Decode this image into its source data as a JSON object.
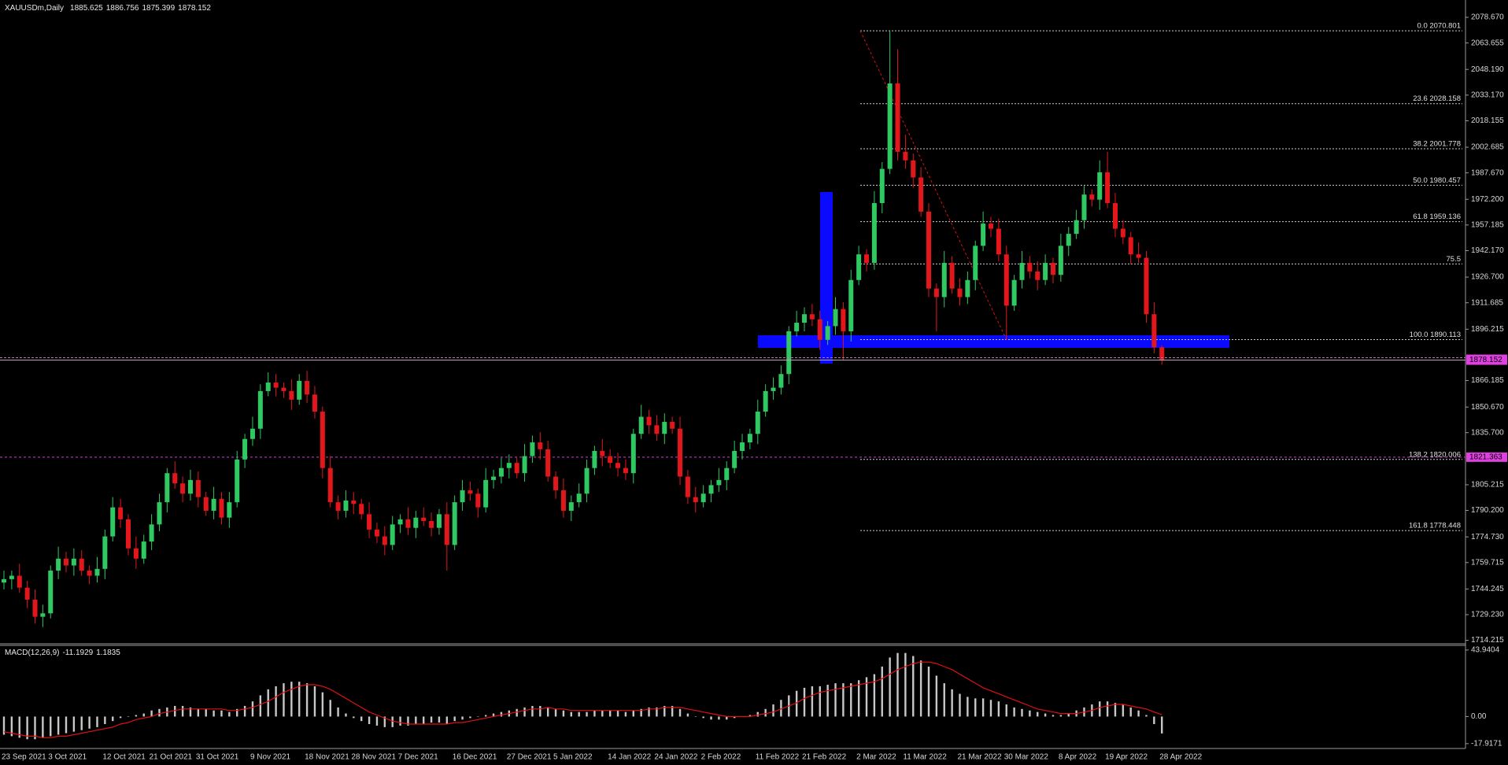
{
  "chart_data": [
    {
      "type": "candlestick",
      "title": "XAUUSDm,Daily",
      "categories": [
        "23 Sep 2021",
        null,
        null,
        null,
        null,
        null,
        "3 Oct 2021",
        null,
        null,
        null,
        null,
        null,
        null,
        "12 Oct 2021",
        null,
        null,
        null,
        null,
        null,
        "21 Oct 2021",
        null,
        null,
        null,
        null,
        null,
        "31 Oct 2021",
        null,
        null,
        null,
        null,
        null,
        null,
        "9 Nov 2021",
        null,
        null,
        null,
        null,
        null,
        null,
        "18 Nov 2021",
        null,
        null,
        null,
        null,
        null,
        "28 Nov 2021",
        null,
        null,
        null,
        null,
        null,
        "7 Dec 2021",
        null,
        null,
        null,
        null,
        null,
        null,
        "16 Dec 2021",
        null,
        null,
        null,
        null,
        null,
        null,
        "27 Dec 2021",
        null,
        null,
        null,
        null,
        null,
        "5 Jan 2022",
        null,
        null,
        null,
        null,
        null,
        null,
        "14 Jan 2022",
        null,
        null,
        null,
        null,
        null,
        "24 Jan 2022",
        null,
        null,
        null,
        null,
        null,
        "2 Feb 2022",
        null,
        null,
        null,
        null,
        null,
        null,
        "11 Feb 2022",
        null,
        null,
        null,
        null,
        null,
        "21 Feb 2022",
        null,
        null,
        null,
        null,
        null,
        null,
        "2 Mar 2022",
        null,
        null,
        null,
        null,
        null,
        "11 Mar 2022",
        null,
        null,
        null,
        null,
        null,
        null,
        "21 Mar 2022",
        null,
        null,
        null,
        null,
        null,
        "30 Mar 2022",
        null,
        null,
        null,
        null,
        null,
        null,
        "8 Apr 2022",
        null,
        null,
        null,
        null,
        null,
        "19 Apr 2022",
        null,
        null,
        null,
        null,
        null,
        null,
        "28 Apr 2022"
      ],
      "open": [
        1748,
        1750,
        1752,
        1745,
        1738,
        1728,
        1730,
        1755,
        1762,
        1758,
        1762,
        1755,
        1752,
        1756,
        1775,
        1792,
        1785,
        1768,
        1762,
        1772,
        1782,
        1795,
        1812,
        1806,
        1800,
        1808,
        1798,
        1790,
        1797,
        1786,
        1795,
        1820,
        1832,
        1838,
        1860,
        1865,
        1862,
        1860,
        1855,
        1866,
        1858,
        1848,
        1815,
        1795,
        1790,
        1796,
        1794,
        1788,
        1779,
        1775,
        1770,
        1782,
        1785,
        1780,
        1786,
        1784,
        1780,
        1788,
        1770,
        1795,
        1802,
        1800,
        1792,
        1808,
        1810,
        1815,
        1818,
        1812,
        1822,
        1830,
        1826,
        1810,
        1802,
        1790,
        1795,
        1800,
        1815,
        1825,
        1822,
        1818,
        1815,
        1812,
        1835,
        1845,
        1840,
        1835,
        1842,
        1838,
        1810,
        1798,
        1795,
        1800,
        1805,
        1808,
        1815,
        1825,
        1830,
        1835,
        1848,
        1860,
        1862,
        1870,
        1895,
        1900,
        1905,
        1902,
        1890,
        1898,
        1908,
        1895,
        1925,
        1940,
        1935,
        1970,
        1990,
        2040,
        2000,
        1995,
        1985,
        1965,
        1920,
        1915,
        1935,
        1920,
        1915,
        1925,
        1945,
        1958,
        1955,
        1940,
        1910,
        1925,
        1935,
        1930,
        1925,
        1935,
        1928,
        1945,
        1952,
        1960,
        1975,
        1972,
        1988,
        1970,
        1955,
        1950,
        1940,
        1938,
        1905,
        1885.625
      ],
      "high": [
        1755,
        1755,
        1759,
        1749,
        1744,
        1735,
        1758,
        1769,
        1766,
        1768,
        1767,
        1758,
        1763,
        1779,
        1798,
        1797,
        1788,
        1775,
        1776,
        1788,
        1800,
        1815,
        1819,
        1810,
        1814,
        1813,
        1801,
        1804,
        1801,
        1801,
        1825,
        1835,
        1845,
        1864,
        1871,
        1870,
        1865,
        1867,
        1870,
        1872,
        1863,
        1851,
        1822,
        1799,
        1802,
        1801,
        1797,
        1795,
        1783,
        1781,
        1787,
        1788,
        1792,
        1790,
        1792,
        1789,
        1791,
        1795,
        1799,
        1808,
        1807,
        1803,
        1815,
        1814,
        1821,
        1823,
        1821,
        1829,
        1834,
        1836,
        1831,
        1813,
        1809,
        1799,
        1806,
        1820,
        1828,
        1832,
        1826,
        1824,
        1820,
        1838,
        1852,
        1849,
        1846,
        1847,
        1845,
        1845,
        1814,
        1804,
        1805,
        1808,
        1815,
        1819,
        1831,
        1835,
        1838,
        1855,
        1864,
        1868,
        1875,
        1898,
        1907,
        1909,
        1911,
        1907,
        1901,
        1915,
        1912,
        1931,
        1945,
        1943,
        1977,
        1994,
        2071,
        2060,
        2010,
        1999,
        1991,
        1970,
        1923,
        1942,
        1939,
        1926,
        1930,
        1948,
        1965,
        1962,
        1961,
        1945,
        1928,
        1942,
        1939,
        1936,
        1940,
        1938,
        1952,
        1956,
        1966,
        1980,
        1978,
        1995,
        2000,
        1976,
        1960,
        1953,
        1947,
        1942,
        1912,
        1886.756
      ],
      "low": [
        1744,
        1744,
        1742,
        1733,
        1724,
        1722,
        1727,
        1750,
        1754,
        1752,
        1752,
        1747,
        1748,
        1750,
        1772,
        1780,
        1764,
        1756,
        1759,
        1767,
        1778,
        1789,
        1803,
        1795,
        1796,
        1792,
        1787,
        1785,
        1782,
        1780,
        1792,
        1815,
        1828,
        1832,
        1857,
        1857,
        1856,
        1849,
        1852,
        1853,
        1844,
        1809,
        1792,
        1785,
        1786,
        1788,
        1785,
        1774,
        1771,
        1764,
        1767,
        1777,
        1776,
        1774,
        1781,
        1775,
        1776,
        1755,
        1767,
        1790,
        1796,
        1786,
        1789,
        1803,
        1806,
        1809,
        1809,
        1807,
        1818,
        1820,
        1807,
        1797,
        1786,
        1784,
        1792,
        1795,
        1811,
        1816,
        1815,
        1810,
        1808,
        1806,
        1832,
        1835,
        1831,
        1829,
        1835,
        1805,
        1794,
        1789,
        1792,
        1795,
        1801,
        1802,
        1812,
        1820,
        1826,
        1829,
        1845,
        1855,
        1858,
        1864,
        1892,
        1895,
        1898,
        1884,
        1887,
        1893,
        1878,
        1889,
        1922,
        1930,
        1931,
        1964,
        1987,
        1995,
        1990,
        1979,
        1962,
        1915,
        1895,
        1909,
        1917,
        1910,
        1911,
        1919,
        1942,
        1950,
        1936,
        1890,
        1907,
        1920,
        1926,
        1919,
        1922,
        1923,
        1924,
        1939,
        1949,
        1955,
        1968,
        1966,
        1967,
        1950,
        1946,
        1934,
        1935,
        1900,
        1882,
        1875.399
      ],
      "close": [
        1750,
        1752,
        1745,
        1738,
        1728,
        1730,
        1755,
        1762,
        1758,
        1762,
        1755,
        1752,
        1756,
        1775,
        1792,
        1785,
        1768,
        1762,
        1772,
        1782,
        1795,
        1812,
        1806,
        1800,
        1808,
        1798,
        1790,
        1797,
        1786,
        1795,
        1820,
        1832,
        1838,
        1860,
        1865,
        1862,
        1860,
        1855,
        1866,
        1858,
        1848,
        1815,
        1795,
        1790,
        1796,
        1794,
        1788,
        1779,
        1775,
        1770,
        1782,
        1785,
        1780,
        1786,
        1784,
        1780,
        1788,
        1770,
        1795,
        1802,
        1800,
        1792,
        1808,
        1810,
        1815,
        1818,
        1812,
        1822,
        1830,
        1826,
        1810,
        1802,
        1790,
        1795,
        1800,
        1815,
        1825,
        1822,
        1818,
        1815,
        1812,
        1835,
        1845,
        1840,
        1835,
        1842,
        1838,
        1810,
        1798,
        1795,
        1800,
        1805,
        1808,
        1815,
        1825,
        1830,
        1835,
        1848,
        1860,
        1862,
        1870,
        1895,
        1900,
        1905,
        1902,
        1890,
        1898,
        1908,
        1895,
        1925,
        1940,
        1935,
        1970,
        1990,
        2040,
        2000,
        1995,
        1985,
        1965,
        1920,
        1915,
        1935,
        1920,
        1915,
        1925,
        1945,
        1958,
        1955,
        1940,
        1910,
        1925,
        1935,
        1930,
        1925,
        1935,
        1928,
        1945,
        1952,
        1960,
        1975,
        1972,
        1988,
        1970,
        1955,
        1950,
        1940,
        1938,
        1905,
        1885.625,
        1878.152
      ],
      "up_color": "#2fc862",
      "down_color": "#e3161c",
      "ylim": [
        1713.1,
        2088.8
      ],
      "yticks": [
        {
          "value": 2078.67,
          "label": "2078.670"
        },
        2063.655,
        {
          "value": 2048.19,
          "label": "2048.190"
        },
        {
          "value": 2033.17,
          "label": "2033.170"
        },
        2018.155,
        2002.685,
        {
          "value": 1987.67,
          "label": "1987.670"
        },
        {
          "value": 1972.2,
          "label": "1972.200"
        },
        1957.185,
        {
          "value": 1942.17,
          "label": "1942.170"
        },
        {
          "value": 1926.7,
          "label": "1926.700"
        },
        1911.685,
        1896.215,
        1866.185,
        {
          "value": 1850.67,
          "label": "1850.670"
        },
        {
          "value": 1835.7,
          "label": "1835.700"
        },
        1805.215,
        {
          "value": 1790.2,
          "label": "1790.200"
        },
        {
          "value": 1774.73,
          "label": "1774.730"
        },
        1759.715,
        1744.245,
        {
          "value": 1729.23,
          "label": "1729.230"
        },
        1714.215
      ],
      "fib_levels": [
        {
          "value": 2070.801,
          "label": "0.0 2070.801"
        },
        {
          "value": 2028.158,
          "label": "23.6 2028.158"
        },
        {
          "value": 2001.778,
          "label": "38.2 2001.778"
        },
        {
          "value": 1980.457,
          "label": "50.0 1980.457"
        },
        {
          "value": 1959.136,
          "label": "61.8 1959.136"
        },
        {
          "value": 1934.38,
          "label": "75.5"
        },
        {
          "value": 1890.113,
          "label": "100.0 1890.113"
        },
        {
          "value": 1820.006,
          "label": "138.2 1820.006"
        },
        {
          "value": 1778.448,
          "label": "161.8 1778.448"
        }
      ],
      "levels": [
        1821.363
      ]
    },
    {
      "type": "macd",
      "title": "MACD(12,26,9)",
      "histogram": [
        -12,
        -13,
        -14,
        -15,
        -15,
        -14,
        -13,
        -12,
        -11,
        -10,
        -9,
        -8,
        -7,
        -5,
        -3,
        -1,
        0,
        1,
        2,
        4,
        5,
        6,
        7,
        7,
        6,
        5,
        5,
        4,
        4,
        3,
        5,
        7,
        10,
        14,
        18,
        20,
        22,
        23,
        23,
        22,
        20,
        16,
        11,
        6,
        2,
        -1,
        -3,
        -5,
        -6,
        -7,
        -7,
        -6,
        -6,
        -5,
        -5,
        -4,
        -4,
        -5,
        -3,
        -2,
        -1,
        0,
        1,
        2,
        3,
        4,
        5,
        6,
        7,
        7,
        6,
        5,
        4,
        3,
        3,
        3,
        4,
        4,
        4,
        4,
        3,
        4,
        5,
        6,
        6,
        7,
        7,
        5,
        2,
        0,
        -1,
        -2,
        -2,
        -2,
        -1,
        0,
        1,
        3,
        5,
        8,
        11,
        14,
        17,
        19,
        20,
        20,
        21,
        22,
        22,
        22,
        24,
        26,
        28,
        33,
        39,
        42,
        42,
        40,
        37,
        33,
        27,
        22,
        18,
        15,
        13,
        12,
        12,
        11,
        10,
        8,
        6,
        5,
        4,
        3,
        2,
        1,
        1,
        2,
        4,
        6,
        8,
        10,
        10,
        9,
        8,
        6,
        4,
        1,
        -5,
        -11.1929
      ],
      "signal": [
        -10,
        -11,
        -12,
        -13,
        -13,
        -14,
        -14,
        -13,
        -13,
        -12,
        -11,
        -10,
        -9,
        -8,
        -7,
        -5,
        -4,
        -2,
        -1,
        0,
        2,
        3,
        4,
        5,
        5,
        5,
        5,
        5,
        5,
        4,
        4,
        5,
        6,
        8,
        10,
        13,
        16,
        18,
        20,
        21,
        21,
        20,
        18,
        15,
        12,
        9,
        6,
        3,
        1,
        -1,
        -3,
        -4,
        -5,
        -5,
        -5,
        -5,
        -5,
        -5,
        -4,
        -4,
        -3,
        -2,
        -1,
        0,
        1,
        2,
        3,
        4,
        5,
        5,
        6,
        5,
        5,
        4,
        4,
        4,
        4,
        4,
        4,
        4,
        4,
        4,
        4,
        5,
        5,
        6,
        6,
        6,
        5,
        4,
        3,
        2,
        1,
        0,
        0,
        0,
        0,
        1,
        2,
        3,
        5,
        7,
        9,
        12,
        14,
        16,
        17,
        18,
        19,
        20,
        21,
        22,
        23,
        25,
        28,
        31,
        33,
        35,
        36,
        36,
        35,
        33,
        31,
        28,
        25,
        22,
        19,
        17,
        15,
        13,
        11,
        9,
        7,
        5,
        4,
        3,
        2,
        2,
        2,
        3,
        4,
        6,
        7,
        8,
        8,
        7,
        6,
        5,
        3,
        1.1835
      ],
      "hist_color": "#c8c8c8",
      "signal_color": "#e01010",
      "ylim": [
        -21.1,
        46.5
      ],
      "yticks": [
        43.9404,
        {
          "value": 0,
          "label": "0.00"
        },
        -17.9171
      ]
    }
  ]
}
